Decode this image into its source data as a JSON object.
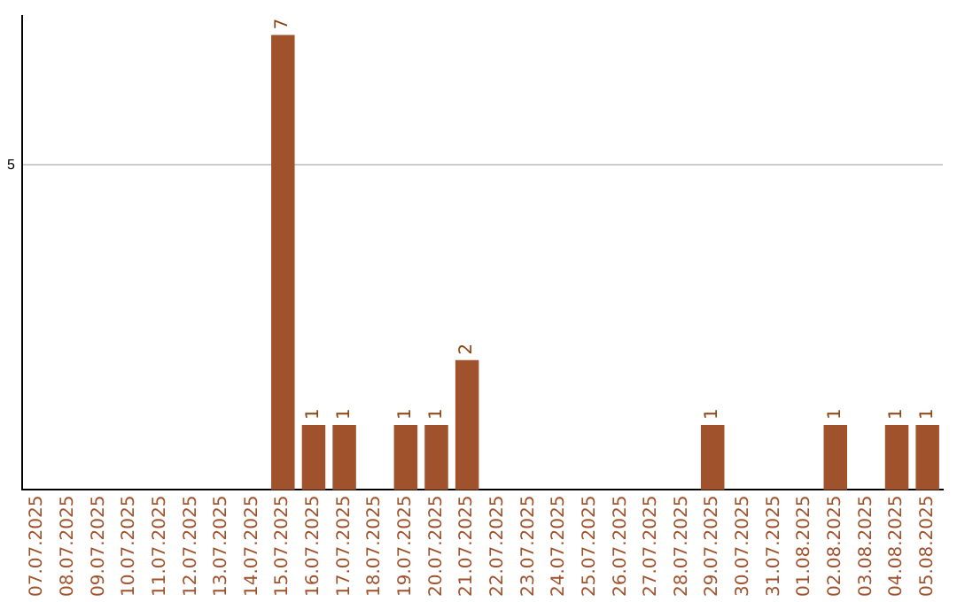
{
  "chart_data": {
    "type": "bar",
    "categories": [
      "07.07.2025",
      "08.07.2025",
      "09.07.2025",
      "10.07.2025",
      "11.07.2025",
      "12.07.2025",
      "13.07.2025",
      "14.07.2025",
      "15.07.2025",
      "16.07.2025",
      "17.07.2025",
      "18.07.2025",
      "19.07.2025",
      "20.07.2025",
      "21.07.2025",
      "22.07.2025",
      "23.07.2025",
      "24.07.2025",
      "25.07.2025",
      "26.07.2025",
      "27.07.2025",
      "28.07.2025",
      "29.07.2025",
      "30.07.2025",
      "31.07.2025",
      "01.08.2025",
      "02.08.2025",
      "03.08.2025",
      "04.08.2025",
      "05.08.2025"
    ],
    "values": [
      0,
      0,
      0,
      0,
      0,
      0,
      0,
      0,
      7,
      1,
      1,
      0,
      1,
      1,
      2,
      0,
      0,
      0,
      0,
      0,
      0,
      0,
      1,
      0,
      0,
      0,
      1,
      0,
      1,
      1
    ],
    "color": "#a0522d",
    "ylim": [
      0,
      7.3
    ],
    "yticks": [
      5
    ],
    "grid": "y",
    "value_labels": [
      null,
      null,
      null,
      null,
      null,
      null,
      null,
      null,
      "7",
      "1",
      "1",
      null,
      "1",
      "1",
      "2",
      null,
      null,
      null,
      null,
      null,
      null,
      null,
      "1",
      null,
      null,
      null,
      "1",
      null,
      "1",
      "1"
    ],
    "legend": false
  }
}
